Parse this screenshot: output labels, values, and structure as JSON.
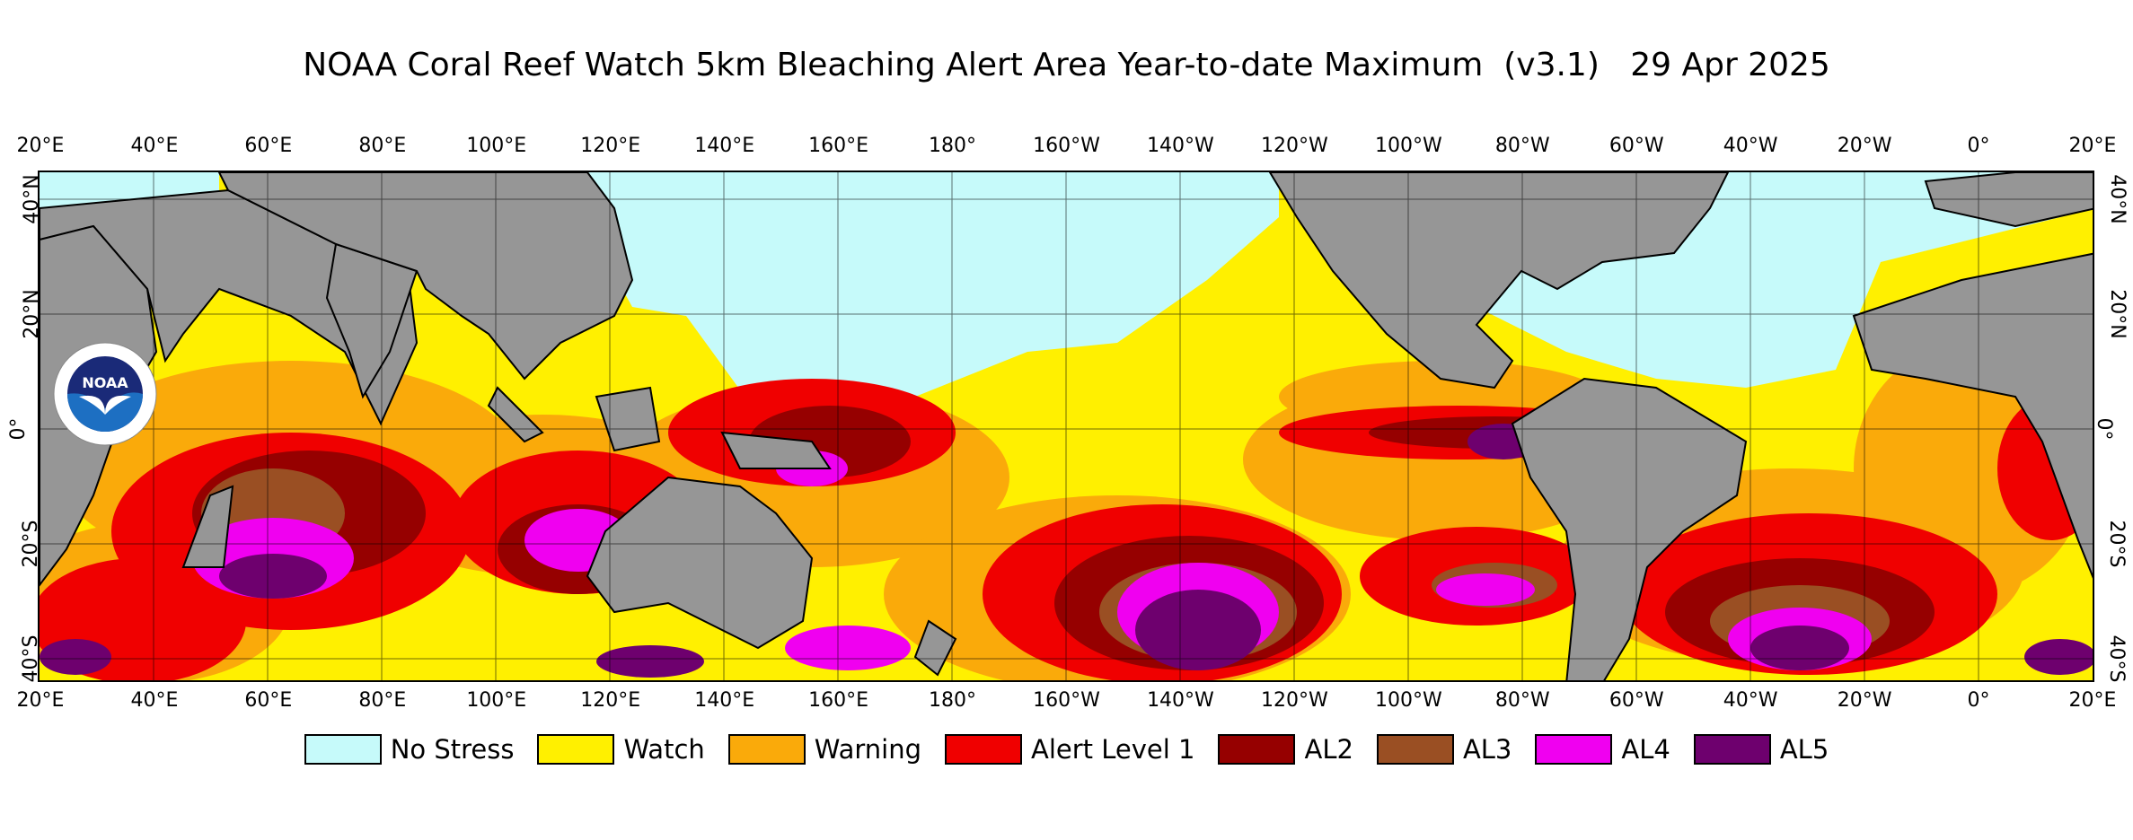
{
  "title": "NOAA Coral Reef Watch 5km Bleaching Alert Area Year-to-date Maximum  (v3.1)   29 Apr 2025",
  "lon_ticks": [
    "20°E",
    "40°E",
    "60°E",
    "80°E",
    "100°E",
    "120°E",
    "140°E",
    "160°E",
    "180°",
    "160°W",
    "140°W",
    "120°W",
    "100°W",
    "80°W",
    "60°W",
    "40°W",
    "20°W",
    "0°",
    "20°E"
  ],
  "lat_ticks": [
    "40°N",
    "20°N",
    "0°",
    "20°S",
    "40°S"
  ],
  "logo_text": "NOAA",
  "colors": {
    "no_stress": "#c6fafa",
    "watch": "#fff000",
    "warning": "#faaa0a",
    "alert1": "#f00000",
    "al2": "#960000",
    "al3": "#9a4f23",
    "al4": "#f000f0",
    "al5": "#6e006e",
    "land": "#969696"
  },
  "legend": [
    {
      "label": "No Stress",
      "color": "#c6fafa"
    },
    {
      "label": "Watch",
      "color": "#fff000"
    },
    {
      "label": "Warning",
      "color": "#faaa0a"
    },
    {
      "label": "Alert Level 1",
      "color": "#f00000"
    },
    {
      "label": "AL2",
      "color": "#960000"
    },
    {
      "label": "AL3",
      "color": "#9a4f23"
    },
    {
      "label": "AL4",
      "color": "#f000f0"
    },
    {
      "label": "AL5",
      "color": "#6e006e"
    }
  ]
}
